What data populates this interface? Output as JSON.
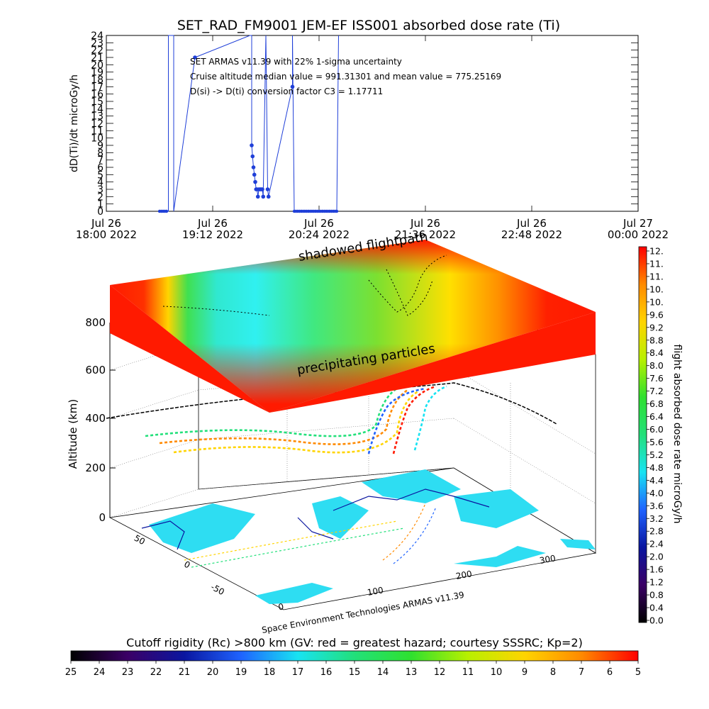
{
  "colors": {
    "series": "#1f3fd8",
    "axis": "#000000",
    "background": "#ffffff",
    "layer_colormap": [
      "#ff1a00",
      "#ff7a00",
      "#ffd400",
      "#b6f000",
      "#30e040",
      "#30e8a0",
      "#30f0f0"
    ],
    "rate_colormap": [
      "#000000",
      "#3b0066",
      "#0a16a0",
      "#1f63ff",
      "#18e3f2",
      "#22e07a",
      "#2fe02f",
      "#b8f000",
      "#ffd400",
      "#ff8a00",
      "#ff0000"
    ],
    "rigidity_colormap": [
      "#000000",
      "#3b0066",
      "#0a16a0",
      "#1f63ff",
      "#18e3f2",
      "#22e07a",
      "#2fe02f",
      "#b8f000",
      "#ffd400",
      "#ff8a00",
      "#ff0000"
    ],
    "land": "#ffffff",
    "ocean": "#2eddf2"
  },
  "chart_data": [
    {
      "type": "line",
      "title": "SET_RAD_FM9001  JEM-EF ISS001 absorbed dose rate (Ti)",
      "ylabel": "dD(Ti)/dt microGy/h",
      "xlabel": "",
      "ylim": [
        0,
        24
      ],
      "y_ticks": [
        "0",
        "1",
        "2",
        "3",
        "4",
        "5",
        "6",
        "7",
        "8",
        "9",
        "10",
        "11",
        "12",
        "13",
        "14",
        "15",
        "16",
        "17",
        "18",
        "19",
        "20",
        "21",
        "22",
        "23",
        "24"
      ],
      "xlim_hours": [
        18.0,
        24.0
      ],
      "x_tick_hours": [
        18.0,
        19.2,
        20.4,
        21.6,
        22.8,
        24.0
      ],
      "x_tick_labels": [
        [
          "Jul 26",
          "18:00 2022"
        ],
        [
          "Jul 26",
          "19:12 2022"
        ],
        [
          "Jul 26",
          "20:24 2022"
        ],
        [
          "Jul 26",
          "21:36 2022"
        ],
        [
          "Jul 26",
          "22:48 2022"
        ],
        [
          "Jul 27",
          "00:00 2022"
        ]
      ],
      "annotations": [
        "SET ARMAS v11.39 with 22% 1-sigma uncertainty",
        "Cruise altitude median value = 991.31301 and mean value = 775.25169",
        "D(si) -> D(ti) conversion factor C3 = 1.17711"
      ],
      "series": [
        {
          "x_hours": [
            18.6,
            18.68,
            18.7,
            18.7,
            18.72,
            18.74,
            18.76,
            18.76,
            19.0,
            19.62,
            19.64,
            19.64,
            19.65,
            19.66,
            19.67,
            19.68,
            19.69,
            19.7,
            19.71,
            19.72,
            19.73,
            19.74,
            19.75,
            19.76,
            19.77,
            19.8,
            19.8,
            19.82,
            19.83,
            20.1,
            20.1,
            20.12,
            20.2,
            20.3,
            20.4,
            20.5,
            20.55,
            20.6,
            20.62
          ],
          "y": [
            0,
            0,
            0,
            24,
            24,
            24,
            24,
            0,
            21,
            24,
            24,
            9,
            7.5,
            6,
            5,
            4,
            3,
            3,
            2,
            3,
            3,
            3,
            3,
            3,
            2,
            24,
            24,
            3,
            2,
            17,
            24,
            0,
            0,
            0,
            0,
            0,
            0,
            0,
            24
          ]
        }
      ]
    },
    {
      "type": "heatmap",
      "title": "",
      "ylabel": "Altitude (km)",
      "y_ticks": [
        "0",
        "200",
        "400",
        "600",
        "800"
      ],
      "x_ticks": [
        "0",
        "100",
        "200",
        "300"
      ],
      "depth_ticks": [
        "-50",
        "0",
        "50"
      ],
      "labels": [
        "shadowed flightpath",
        "precipitating particles"
      ],
      "credit": "Space Environment Technologies ARMAS v11.39"
    },
    {
      "type": "heatmap",
      "title": "",
      "ylabel": "flight absorbed dose rate microGy/h",
      "scale_ticks": [
        "12.",
        "11.",
        "11.",
        "10.",
        "10.",
        "9.6",
        "9.2",
        "8.8",
        "8.4",
        "8.0",
        "7.6",
        "7.2",
        "6.8",
        "6.4",
        "6.0",
        "5.6",
        "5.2",
        "4.8",
        "4.4",
        "4.0",
        "3.6",
        "3.2",
        "2.8",
        "2.4",
        "2.0",
        "1.6",
        "1.2",
        "0.8",
        "0.4",
        "0.0"
      ]
    },
    {
      "type": "heatmap",
      "title": "Cutoff rigidity (Rc) >800 km (GV: red = greatest hazard; courtesy SSSRC; Kp=2)",
      "scale_ticks": [
        "25",
        "24",
        "23",
        "22",
        "21",
        "20",
        "19",
        "18",
        "17",
        "16",
        "15",
        "14",
        "13",
        "12",
        "11",
        "10",
        "9",
        "8",
        "7",
        "6",
        "5"
      ]
    }
  ]
}
